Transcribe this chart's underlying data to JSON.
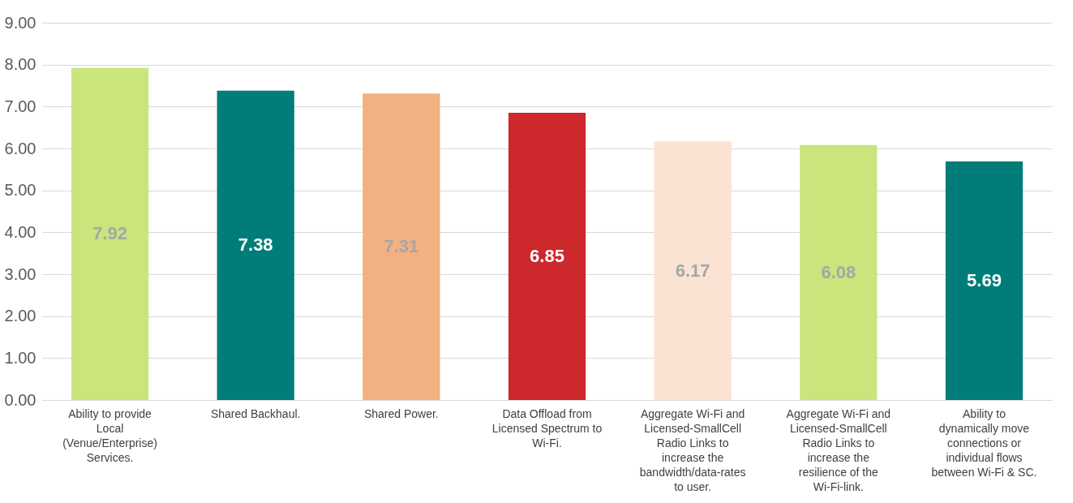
{
  "chart_data": {
    "type": "bar",
    "categories": [
      "Ability to provide Local (Venue/Enterprise) Services.",
      "Shared Backhaul.",
      "Shared Power.",
      "Data Offload from Licensed Spectrum to Wi-Fi.",
      "Aggregate Wi-Fi and Licensed-SmallCell Radio Links to increase the bandwidth/data-rates to user.",
      "Aggregate Wi-Fi and Licensed-SmallCell Radio Links to increase the resilience of the Wi-Fi-link.",
      "Ability to dynamically move connections or individual flows between Wi-Fi & SC."
    ],
    "values": [
      7.92,
      7.38,
      7.31,
      6.85,
      6.17,
      6.08,
      5.69
    ],
    "colors": [
      "#c9e57c",
      "#007d78",
      "#f3b081",
      "#cd282c",
      "#fbe3d3",
      "#c9e57c",
      "#007d78"
    ],
    "ylim": [
      0,
      9
    ],
    "yticks": [
      {
        "value": 0,
        "label": "0.00"
      },
      {
        "value": 1,
        "label": "1.00"
      },
      {
        "value": 2,
        "label": "2.00"
      },
      {
        "value": 3,
        "label": "3.00"
      },
      {
        "value": 4,
        "label": "4.00"
      },
      {
        "value": 5,
        "label": "5.00"
      },
      {
        "value": 6,
        "label": "6.00"
      },
      {
        "value": 7,
        "label": "7.00"
      },
      {
        "value": 8,
        "label": "8.00"
      },
      {
        "value": 9,
        "label": "9.00"
      }
    ],
    "grid": "y",
    "data_labels": true
  }
}
